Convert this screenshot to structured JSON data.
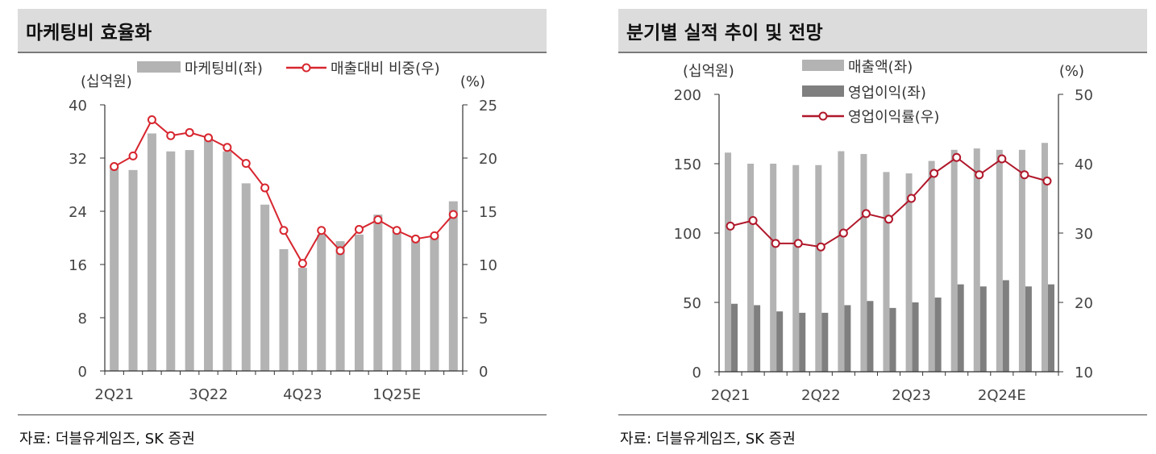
{
  "colors": {
    "bar_light": "#b3b3b3",
    "bar_dark": "#7f7f7f",
    "line_red": "#d7262f",
    "line_darkred": "#b0172a",
    "axis": "#333333"
  },
  "chart_data": [
    {
      "type": "bar",
      "title": "마케팅비 효율화",
      "source": "자료: 더블유게임즈, SK 증권",
      "left_unit": "(십억원)",
      "right_unit": "(%)",
      "categories": [
        "2Q21",
        "3Q21",
        "4Q21",
        "1Q22",
        "2Q22",
        "3Q22",
        "4Q22",
        "1Q23",
        "2Q23",
        "3Q23",
        "4Q23",
        "1Q24",
        "2Q24",
        "3Q24",
        "4Q24",
        "1Q25E",
        "2Q25E",
        "3Q25E",
        "4Q25E"
      ],
      "x_tick_labels": [
        "2Q21",
        "3Q22",
        "4Q23",
        "1Q25E"
      ],
      "ylim_left": [
        0,
        40
      ],
      "yticks_left": [
        "0",
        "8",
        "16",
        "24",
        "32",
        "40"
      ],
      "ylim_right": [
        0,
        25
      ],
      "yticks_right": [
        "0",
        "5",
        "10",
        "15",
        "20",
        "25"
      ],
      "series": [
        {
          "name": "마케팅비(좌)",
          "type": "bar",
          "axis": "left",
          "values": [
            31,
            30.2,
            35.7,
            33,
            33.2,
            35,
            33,
            28.2,
            25,
            18.3,
            15.5,
            20.5,
            19.5,
            20.5,
            23.5,
            21,
            20,
            20.3,
            25.5
          ]
        },
        {
          "name": "매출대비 비중(우)",
          "type": "line",
          "axis": "right",
          "values": [
            19.2,
            20.2,
            23.6,
            22.1,
            22.4,
            21.9,
            21.0,
            19.5,
            17.2,
            13.2,
            10.1,
            13.2,
            11.3,
            13.3,
            14.2,
            13.2,
            12.4,
            12.7,
            14.7
          ]
        }
      ]
    },
    {
      "type": "bar",
      "title": "분기별 실적 추이 및 전망",
      "source": "자료: 더블유게임즈, SK 증권",
      "left_unit": "(십억원)",
      "right_unit": "(%)",
      "categories": [
        "2Q21",
        "3Q21",
        "4Q21",
        "1Q22",
        "2Q22",
        "3Q22",
        "4Q22",
        "1Q23",
        "2Q23",
        "3Q23",
        "4Q23",
        "1Q24",
        "2Q24",
        "3Q24",
        "4Q24"
      ],
      "x_tick_labels": [
        "2Q21",
        "2Q22",
        "2Q23",
        "2Q24E"
      ],
      "ylim_left": [
        0,
        200
      ],
      "yticks_left": [
        "0",
        "50",
        "100",
        "150",
        "200"
      ],
      "ylim_right": [
        10,
        50
      ],
      "yticks_right": [
        "10",
        "20",
        "30",
        "40",
        "50"
      ],
      "series": [
        {
          "name": "매출액(좌)",
          "type": "bar",
          "axis": "left",
          "values": [
            158,
            150,
            150,
            149,
            149,
            159,
            157,
            144,
            143,
            152,
            160,
            161,
            160,
            160,
            165
          ]
        },
        {
          "name": "영업이익(좌)",
          "type": "bar",
          "axis": "left",
          "values": [
            49,
            48,
            43.5,
            42.5,
            42.5,
            48,
            51,
            46,
            50,
            53.5,
            63,
            61.5,
            66,
            61.5,
            63
          ]
        },
        {
          "name": "영업이익률(우)",
          "type": "line",
          "axis": "right",
          "values": [
            31,
            31.8,
            28.5,
            28.5,
            28.0,
            30.0,
            32.8,
            32.0,
            35.0,
            38.6,
            40.9,
            38.4,
            40.7,
            38.4,
            37.5
          ]
        }
      ]
    }
  ]
}
